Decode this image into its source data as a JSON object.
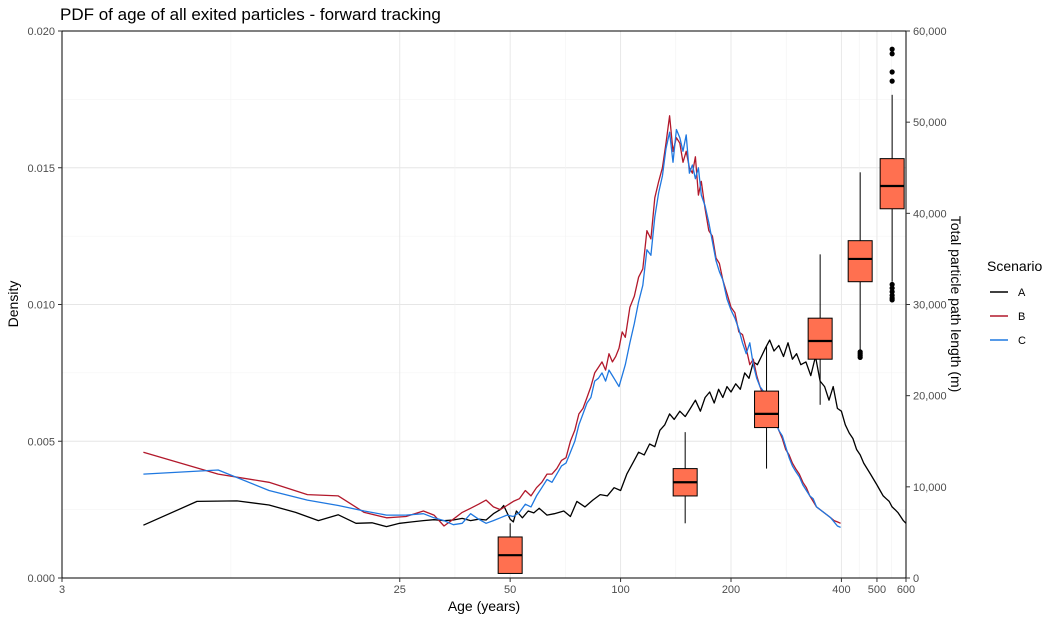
{
  "chart_data": {
    "type": "line",
    "title": "PDF of age of all exited particles - forward tracking",
    "xlabel": "Age (years)",
    "ylabel": "Density",
    "y2label": "Total particle path length (m)",
    "x_scale": "log",
    "xlim": [
      3,
      600
    ],
    "ylim": [
      0,
      0.02
    ],
    "y2lim": [
      0,
      60000
    ],
    "x_ticks": [
      3,
      25,
      50,
      100,
      200,
      400,
      500,
      600
    ],
    "x_tick_labels": [
      "3",
      "25",
      "50",
      "100",
      "200",
      "400",
      "500",
      "600"
    ],
    "y_ticks": [
      0,
      0.005,
      0.01,
      0.015,
      0.02
    ],
    "y_tick_labels": [
      "0.000",
      "0.005",
      "0.010",
      "0.015",
      "0.020"
    ],
    "y2_ticks": [
      0,
      10000,
      20000,
      30000,
      40000,
      50000,
      60000
    ],
    "y2_tick_labels": [
      "0",
      "10,000",
      "20,000",
      "30,000",
      "40,000",
      "50,000",
      "60,000"
    ],
    "grid": true,
    "legend": {
      "title": "Scenario",
      "position": "right"
    },
    "series": [
      {
        "name": "A",
        "color": "#000000",
        "x": [
          5,
          7,
          9,
          11,
          13,
          15,
          17,
          19,
          21,
          23,
          25,
          27,
          29,
          31,
          33,
          35,
          37,
          39,
          41,
          43,
          45,
          47,
          48,
          49,
          50,
          51,
          52,
          54,
          56,
          58,
          60,
          63,
          66,
          70,
          73,
          76,
          80,
          84,
          88,
          92,
          96,
          100,
          104,
          108,
          112,
          116,
          120,
          124,
          128,
          132,
          136,
          140,
          145,
          150,
          155,
          160,
          165,
          170,
          175,
          180,
          185,
          190,
          195,
          200,
          206,
          212,
          218,
          224,
          230,
          236,
          242,
          248,
          255,
          262,
          270,
          278,
          286,
          294,
          302,
          310,
          320,
          330,
          340,
          350,
          360,
          370,
          380,
          390,
          400,
          410,
          420,
          430,
          440,
          450,
          460,
          470,
          480,
          490,
          500,
          510,
          520,
          530,
          540,
          550,
          560,
          570,
          580,
          590,
          600
        ],
        "values": [
          0.00193,
          0.0028,
          0.00282,
          0.00267,
          0.0024,
          0.0021,
          0.00231,
          0.002,
          0.00202,
          0.00188,
          0.002,
          0.00205,
          0.0021,
          0.00213,
          0.0021,
          0.00212,
          0.00218,
          0.0021,
          0.00215,
          0.00212,
          0.00235,
          0.0025,
          0.00265,
          0.0024,
          0.00215,
          0.00205,
          0.00245,
          0.0022,
          0.00245,
          0.00238,
          0.00255,
          0.0023,
          0.00235,
          0.00245,
          0.00225,
          0.0028,
          0.0026,
          0.00285,
          0.00305,
          0.003,
          0.0033,
          0.0032,
          0.0038,
          0.0042,
          0.0046,
          0.0045,
          0.0049,
          0.0048,
          0.0054,
          0.0056,
          0.006,
          0.0058,
          0.0061,
          0.0059,
          0.0062,
          0.0065,
          0.0061,
          0.0066,
          0.0068,
          0.0064,
          0.0069,
          0.0066,
          0.007,
          0.0068,
          0.0071,
          0.0069,
          0.0075,
          0.0073,
          0.0079,
          0.0078,
          0.0081,
          0.0084,
          0.0087,
          0.0083,
          0.0085,
          0.0081,
          0.0086,
          0.008,
          0.0082,
          0.0078,
          0.0079,
          0.0074,
          0.0081,
          0.0072,
          0.007,
          0.0065,
          0.007,
          0.0062,
          0.0061,
          0.0056,
          0.0053,
          0.0051,
          0.0047,
          0.0045,
          0.0042,
          0.004,
          0.0038,
          0.0036,
          0.0034,
          0.0032,
          0.003,
          0.0029,
          0.0028,
          0.0026,
          0.0025,
          0.0024,
          0.00225,
          0.0021,
          0.002
        ]
      },
      {
        "name": "B",
        "color": "#b2182b",
        "x": [
          5,
          8,
          11,
          14,
          17,
          20,
          23,
          26,
          29,
          31,
          33,
          35,
          37,
          39,
          41,
          43,
          45,
          47,
          49,
          51,
          53,
          55,
          57,
          59,
          61,
          63,
          65,
          67,
          69,
          71,
          73,
          75,
          77,
          79,
          81,
          83,
          85,
          87,
          89,
          91,
          93,
          95,
          97,
          99,
          101,
          103,
          106,
          109,
          112,
          115,
          118,
          121,
          124,
          127,
          130,
          133,
          136,
          139,
          142,
          145,
          148,
          151,
          154,
          157,
          160,
          163,
          166,
          170,
          174,
          178,
          182,
          186,
          190,
          195,
          200,
          205,
          210,
          215,
          220,
          225,
          230,
          235,
          240,
          246,
          252,
          258,
          264,
          270,
          276,
          282,
          288,
          294,
          300,
          307,
          314,
          321,
          328,
          335,
          342,
          350,
          358,
          366,
          374,
          382,
          390,
          398
        ],
        "values": [
          0.0046,
          0.0038,
          0.0035,
          0.00305,
          0.003,
          0.0024,
          0.0022,
          0.00225,
          0.00245,
          0.0023,
          0.0019,
          0.00215,
          0.0024,
          0.00255,
          0.0027,
          0.00285,
          0.0026,
          0.0025,
          0.00265,
          0.0028,
          0.0029,
          0.0032,
          0.003,
          0.0033,
          0.0035,
          0.0038,
          0.0038,
          0.004,
          0.0043,
          0.0044,
          0.005,
          0.0054,
          0.006,
          0.0062,
          0.0066,
          0.007,
          0.0075,
          0.0077,
          0.0079,
          0.0076,
          0.0082,
          0.0079,
          0.0081,
          0.0084,
          0.009,
          0.0088,
          0.0099,
          0.0103,
          0.011,
          0.0113,
          0.0127,
          0.0124,
          0.0139,
          0.0145,
          0.015,
          0.0159,
          0.0169,
          0.0156,
          0.0161,
          0.0159,
          0.0152,
          0.0156,
          0.015,
          0.0148,
          0.0154,
          0.014,
          0.0145,
          0.0135,
          0.0127,
          0.0125,
          0.0117,
          0.0115,
          0.0109,
          0.0104,
          0.0099,
          0.0097,
          0.009,
          0.0089,
          0.0084,
          0.0078,
          0.008,
          0.0074,
          0.007,
          0.0066,
          0.0064,
          0.0061,
          0.0058,
          0.0054,
          0.0051,
          0.0047,
          0.0045,
          0.0042,
          0.004,
          0.0038,
          0.0035,
          0.0033,
          0.003,
          0.0028,
          0.0026,
          0.0025,
          0.0024,
          0.0023,
          0.0022,
          0.0021,
          0.00205,
          0.002
        ]
      },
      {
        "name": "C",
        "color": "#1f78e0",
        "x": [
          5,
          8,
          11,
          14,
          17,
          20,
          23,
          26,
          29,
          31,
          33,
          35,
          37,
          39,
          41,
          43,
          45,
          47,
          49,
          51,
          53,
          55,
          57,
          59,
          61,
          63,
          65,
          67,
          69,
          71,
          73,
          75,
          77,
          79,
          81,
          83,
          85,
          87,
          89,
          91,
          93,
          95,
          97,
          99,
          101,
          103,
          106,
          109,
          112,
          115,
          118,
          121,
          124,
          127,
          130,
          133,
          136,
          139,
          142,
          145,
          148,
          151,
          154,
          157,
          160,
          163,
          166,
          170,
          174,
          178,
          182,
          186,
          190,
          195,
          200,
          205,
          210,
          215,
          220,
          225,
          230,
          235,
          240,
          246,
          252,
          258,
          264,
          270,
          276,
          282,
          288,
          294,
          300,
          307,
          314,
          321,
          328,
          335,
          342,
          350,
          358,
          366,
          374,
          382,
          390,
          398
        ],
        "values": [
          0.0038,
          0.00395,
          0.0032,
          0.00285,
          0.00265,
          0.00245,
          0.0023,
          0.0023,
          0.00235,
          0.0022,
          0.0021,
          0.00195,
          0.002,
          0.00235,
          0.00215,
          0.002,
          0.0021,
          0.0022,
          0.0023,
          0.00225,
          0.0024,
          0.0027,
          0.0026,
          0.003,
          0.0033,
          0.0036,
          0.0035,
          0.0038,
          0.0041,
          0.0042,
          0.0046,
          0.005,
          0.0056,
          0.006,
          0.0064,
          0.0066,
          0.0072,
          0.0073,
          0.0075,
          0.0072,
          0.0076,
          0.0074,
          0.0072,
          0.007,
          0.0074,
          0.0078,
          0.0086,
          0.0093,
          0.0101,
          0.0107,
          0.012,
          0.0118,
          0.0132,
          0.0141,
          0.0147,
          0.0157,
          0.0163,
          0.0152,
          0.0164,
          0.0161,
          0.0156,
          0.0162,
          0.0148,
          0.0151,
          0.0146,
          0.015,
          0.014,
          0.0136,
          0.013,
          0.0123,
          0.0116,
          0.0112,
          0.0109,
          0.0102,
          0.0098,
          0.0095,
          0.0091,
          0.0086,
          0.0082,
          0.0086,
          0.0078,
          0.0073,
          0.007,
          0.0068,
          0.0062,
          0.006,
          0.0057,
          0.0054,
          0.0052,
          0.0048,
          0.0044,
          0.0041,
          0.0039,
          0.0037,
          0.0034,
          0.0032,
          0.003,
          0.0029,
          0.0026,
          0.0025,
          0.0024,
          0.0023,
          0.0022,
          0.00205,
          0.0019,
          0.00185
        ]
      }
    ],
    "boxplots": {
      "axis": "secondary",
      "fill": "#ff7050",
      "items": [
        {
          "x": 50,
          "q1": 500,
          "median": 2500,
          "q3": 4500,
          "whisker_low": 500,
          "whisker_high": 6000,
          "outliers": []
        },
        {
          "x": 150,
          "q1": 9000,
          "median": 10500,
          "q3": 12000,
          "whisker_low": 6000,
          "whisker_high": 16000,
          "outliers": []
        },
        {
          "x": 250,
          "q1": 16500,
          "median": 18000,
          "q3": 20500,
          "whisker_low": 12000,
          "whisker_high": 25500,
          "outliers": []
        },
        {
          "x": 350,
          "q1": 24000,
          "median": 26000,
          "q3": 28500,
          "whisker_low": 19000,
          "whisker_high": 35500,
          "outliers": []
        },
        {
          "x": 450,
          "q1": 32500,
          "median": 35000,
          "q3": 37000,
          "whisker_low": 25000,
          "whisker_high": 44500,
          "outliers": [
            24800,
            24600,
            24400,
            24200
          ]
        },
        {
          "x": 550,
          "q1": 40500,
          "median": 43000,
          "q3": 46000,
          "whisker_low": 32500,
          "whisker_high": 53000,
          "outliers": [
            32200,
            31800,
            31400,
            31000,
            30700,
            30500,
            54500,
            55500,
            57500,
            58000
          ]
        }
      ]
    }
  }
}
